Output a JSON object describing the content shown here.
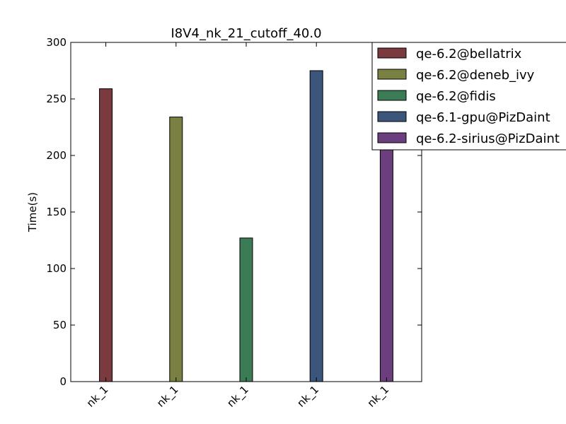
{
  "chart_data": {
    "type": "bar",
    "title": "I8V4_nk_21_cutoff_40.0",
    "xlabel": "",
    "ylabel": "Time(s)",
    "ylim": [
      0,
      300
    ],
    "yticks": [
      "0",
      "50",
      "100",
      "150",
      "200",
      "250",
      "300"
    ],
    "categories": [
      "nk_1",
      "nk_1",
      "nk_1",
      "nk_1",
      "nk_1"
    ],
    "grid": false,
    "legend_position": "top-right",
    "series": [
      {
        "name": "qe-6.2@bellatrix",
        "color": "#7b3b3e",
        "values": [
          259,
          null,
          null,
          null,
          null
        ]
      },
      {
        "name": "qe-6.2@deneb_ivy",
        "color": "#7a8042",
        "values": [
          null,
          234,
          null,
          null,
          null
        ]
      },
      {
        "name": "qe-6.2@fidis",
        "color": "#3b7b55",
        "values": [
          null,
          null,
          127,
          null,
          null
        ]
      },
      {
        "name": "qe-6.1-gpu@PizDaint",
        "color": "#3b557b",
        "values": [
          null,
          null,
          null,
          275,
          null
        ]
      },
      {
        "name": "qe-6.2-sirius@PizDaint",
        "color": "#6b3f7d",
        "values": [
          null,
          null,
          null,
          null,
          208
        ]
      }
    ]
  }
}
